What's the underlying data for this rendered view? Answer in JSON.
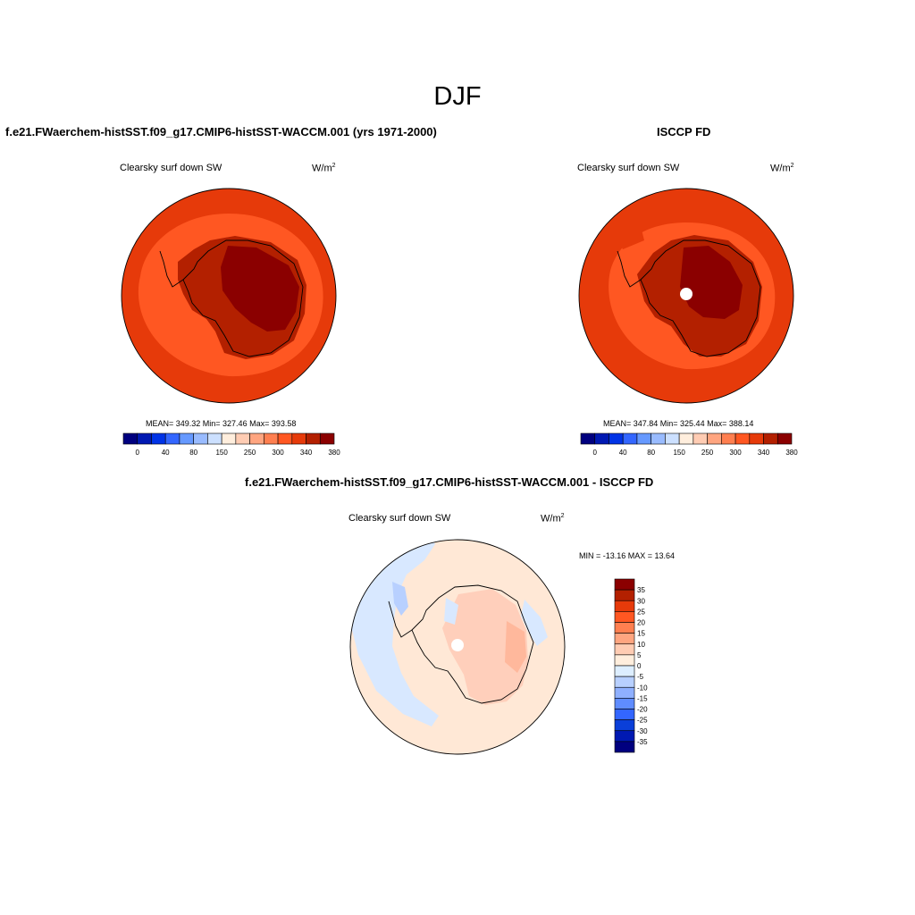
{
  "figure": {
    "title": "DJF"
  },
  "panels": [
    {
      "id": "model",
      "title": "f.e21.FWaerchem-histSST.f09_g17.CMIP6-histSST-WACCM.001 (yrs 1971-2000)",
      "variable": "Clearsky surf down SW",
      "units": "W/m",
      "units_sup": "2",
      "stats": "MEAN= 349.32  Min= 327.46  Max= 393.58"
    },
    {
      "id": "obs",
      "title": "ISCCP FD",
      "variable": "Clearsky surf down SW",
      "units": "W/m",
      "units_sup": "2",
      "stats": "MEAN= 347.84  Min= 325.44  Max= 388.14"
    },
    {
      "id": "diff",
      "title": "f.e21.FWaerchem-histSST.f09_g17.CMIP6-histSST-WACCM.001 - ISCCP FD",
      "variable": "Clearsky surf down SW",
      "units": "W/m",
      "units_sup": "2",
      "stats": "MIN = -13.16 MAX =  13.64"
    }
  ],
  "chart_data": [
    {
      "type": "heatmap",
      "projection": "south-polar-stereographic",
      "title": "f.e21.FWaerchem-histSST.f09_g17.CMIP6-histSST-WACCM.001 (yrs 1971-2000)",
      "variable": "Clearsky surf down SW",
      "units": "W/m2",
      "mean": 349.32,
      "min": 327.46,
      "max": 393.58,
      "colorbar": {
        "orientation": "horizontal",
        "tick_labels": [
          "0",
          "40",
          "80",
          "150",
          "250",
          "300",
          "340",
          "380"
        ],
        "colors": [
          "#00007f",
          "#0019b2",
          "#0033e6",
          "#3366ff",
          "#6699ff",
          "#99bbff",
          "#cce0ff",
          "#ffeedd",
          "#ffccb3",
          "#ffa580",
          "#ff7f50",
          "#ff5722",
          "#e63a0a",
          "#b32000",
          "#8b0000"
        ]
      }
    },
    {
      "type": "heatmap",
      "projection": "south-polar-stereographic",
      "title": "ISCCP FD",
      "variable": "Clearsky surf down SW",
      "units": "W/m2",
      "mean": 347.84,
      "min": 325.44,
      "max": 388.14,
      "colorbar": {
        "orientation": "horizontal",
        "tick_labels": [
          "0",
          "40",
          "80",
          "150",
          "250",
          "300",
          "340",
          "380"
        ],
        "colors": [
          "#00007f",
          "#0019b2",
          "#0033e6",
          "#3366ff",
          "#6699ff",
          "#99bbff",
          "#cce0ff",
          "#ffeedd",
          "#ffccb3",
          "#ffa580",
          "#ff7f50",
          "#ff5722",
          "#e63a0a",
          "#b32000",
          "#8b0000"
        ]
      }
    },
    {
      "type": "heatmap",
      "projection": "south-polar-stereographic",
      "title": "f.e21.FWaerchem-histSST.f09_g17.CMIP6-histSST-WACCM.001 - ISCCP FD",
      "variable": "Clearsky surf down SW",
      "units": "W/m2",
      "min": -13.16,
      "max": 13.64,
      "colorbar": {
        "orientation": "vertical",
        "tick_labels": [
          "35",
          "30",
          "25",
          "20",
          "15",
          "10",
          "5",
          "0",
          "-5",
          "-10",
          "-15",
          "-20",
          "-25",
          "-30",
          "-35"
        ],
        "colors": [
          "#8b0000",
          "#b32000",
          "#e63a0a",
          "#ff5722",
          "#ff7f50",
          "#ffa580",
          "#ffccb3",
          "#ffeedd",
          "#ddeeff",
          "#b8d0ff",
          "#8fb0ff",
          "#5f8cff",
          "#3366ff",
          "#0a3fd9",
          "#0019b2",
          "#00007f"
        ]
      }
    }
  ],
  "colors": {
    "ocean_model": "#ff5722",
    "ocean_outer": "#e63a0a",
    "land_mid": "#b32000",
    "land_high": "#8b0000",
    "diff_ocean": "#ffe8d6",
    "diff_neg": "#d8e8ff",
    "diff_pos": "#ffcfbb"
  }
}
